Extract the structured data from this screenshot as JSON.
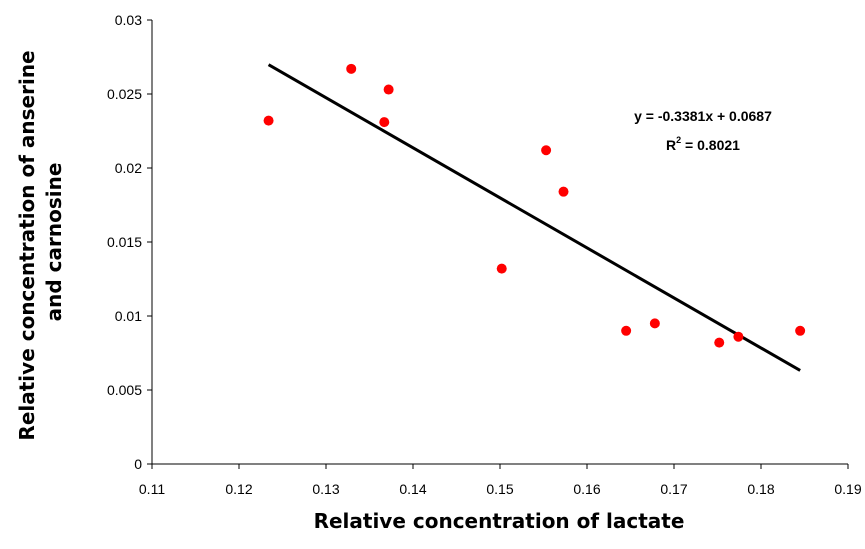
{
  "chart_data": {
    "type": "scatter",
    "xlabel": "Relative concentration of lactate",
    "ylabel_lines": [
      "Relative concentration of anserine",
      "and carnosine"
    ],
    "xlim": [
      0.11,
      0.19
    ],
    "ylim": [
      0,
      0.03
    ],
    "x_ticks": [
      "0.11",
      "0.12",
      "0.13",
      "0.14",
      "0.15",
      "0.16",
      "0.17",
      "0.18",
      "0.19"
    ],
    "y_ticks": [
      "0",
      "0.005",
      "0.01",
      "0.015",
      "0.02",
      "0.025",
      "0.03"
    ],
    "grid": false,
    "marker_color": "#ff0000",
    "points": [
      {
        "x": 0.1234,
        "y": 0.0232
      },
      {
        "x": 0.1329,
        "y": 0.0267
      },
      {
        "x": 0.1367,
        "y": 0.0231
      },
      {
        "x": 0.1372,
        "y": 0.0253
      },
      {
        "x": 0.1502,
        "y": 0.0132
      },
      {
        "x": 0.1553,
        "y": 0.0212
      },
      {
        "x": 0.1573,
        "y": 0.0184
      },
      {
        "x": 0.1645,
        "y": 0.009
      },
      {
        "x": 0.1678,
        "y": 0.0095
      },
      {
        "x": 0.1752,
        "y": 0.0082
      },
      {
        "x": 0.1774,
        "y": 0.0086
      },
      {
        "x": 0.1845,
        "y": 0.009
      }
    ],
    "trendline": {
      "slope": -0.3381,
      "intercept": 0.0687,
      "x_range": [
        0.1234,
        0.1845
      ],
      "color": "#000000"
    },
    "equation_label": "y = -0.3381x + 0.0687",
    "r2_label": {
      "prefix": "R",
      "superscript": "2",
      "suffix": " = 0.8021"
    }
  }
}
